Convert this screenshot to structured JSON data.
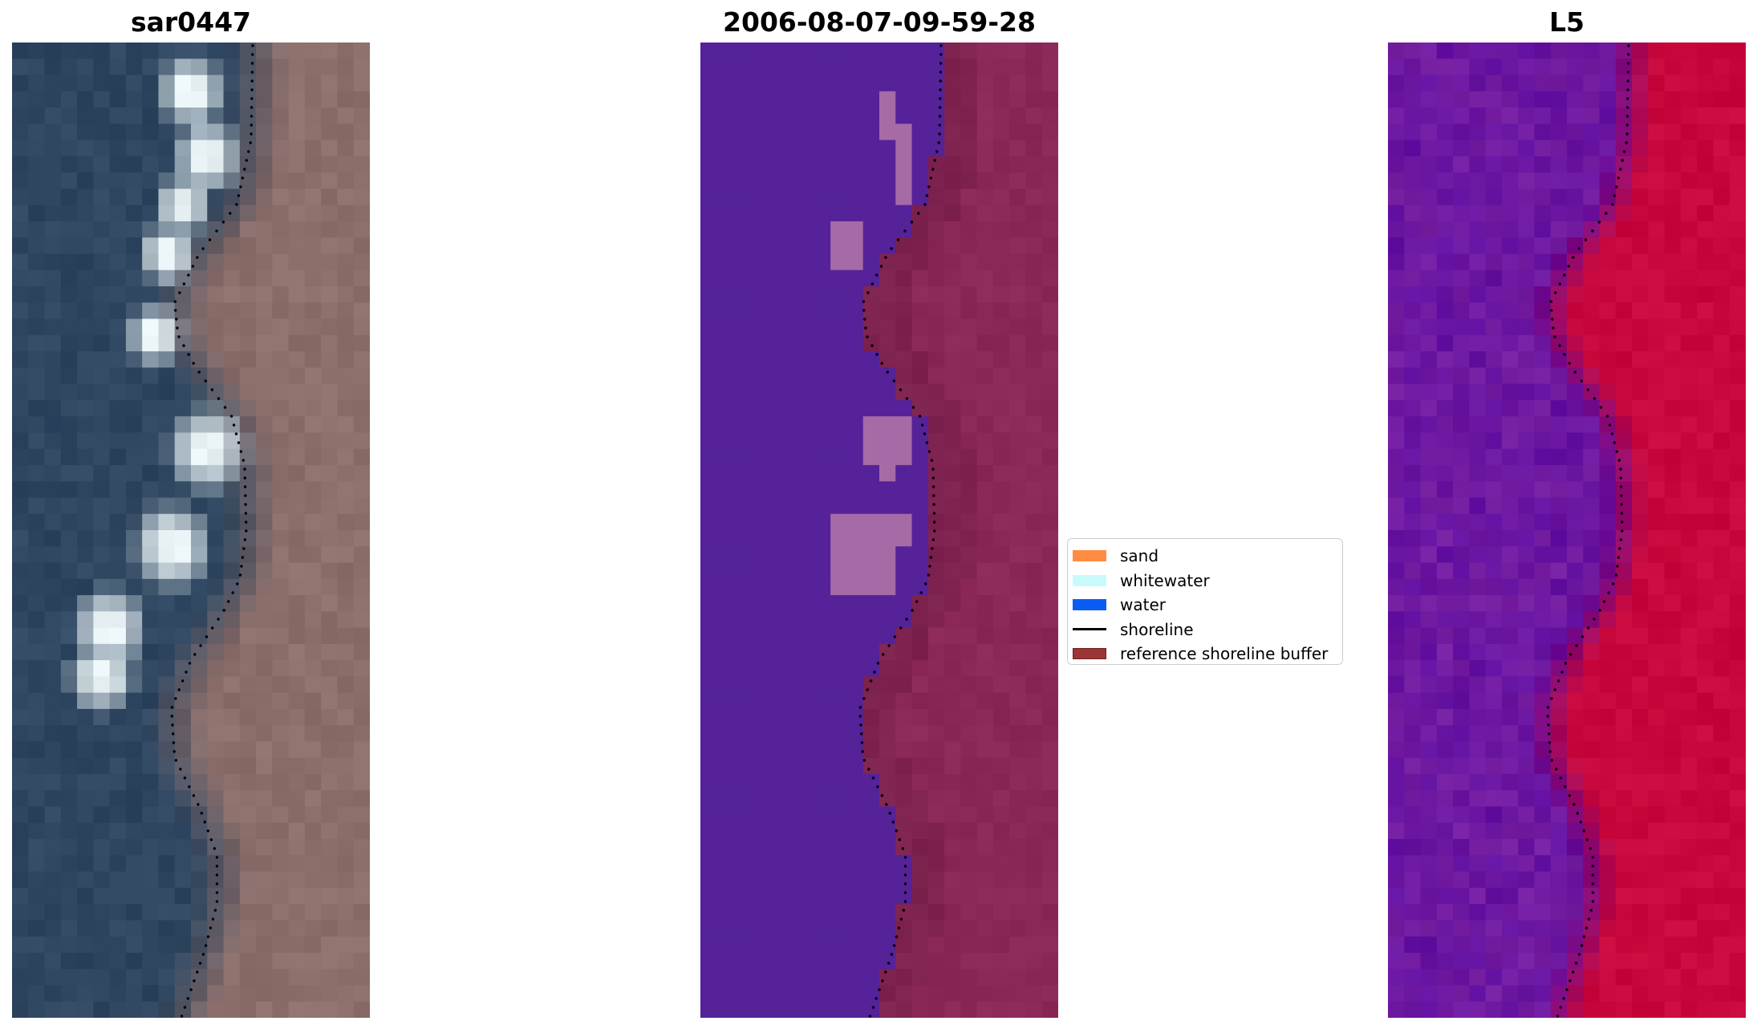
{
  "figure": {
    "titles": [
      "sar0447",
      "2006-08-07-09-59-28",
      "L5"
    ]
  },
  "legend": {
    "items": [
      {
        "label": "sand",
        "color": "#ff8c42",
        "kind": "patch"
      },
      {
        "label": "whitewater",
        "color": "#c7fbfb",
        "kind": "patch"
      },
      {
        "label": "water",
        "color": "#0a5cf5",
        "kind": "patch"
      },
      {
        "label": "shoreline",
        "color": "#000000",
        "kind": "line"
      },
      {
        "label": "reference shoreline buffer",
        "color": "#9c3536",
        "kind": "patch"
      }
    ]
  },
  "colors": {
    "classified_water": "#552299",
    "classified_land": "#8b2858",
    "classified_buffer": "#7e2250",
    "classified_whitewater": "#a66aa6",
    "index_low": "#5a0aa2",
    "index_high": "#c8083c",
    "rgb_water": "#2e4660",
    "rgb_land": "#8c6e6a",
    "rgb_surf": "#e8f2f4",
    "shoreline": "#000000"
  }
}
